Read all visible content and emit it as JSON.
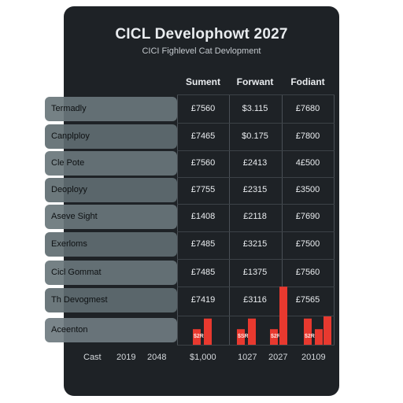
{
  "chart_data": {
    "type": "table",
    "title": "CICL Develophowt 2027",
    "subtitle": "CICI Fighlevel Cat Devlopment",
    "columns": [
      "Sument",
      "Forwant",
      "Fodiant"
    ],
    "rows": [
      {
        "label": "Termadly",
        "values": [
          "£7560",
          "$3.115",
          "£7680"
        ]
      },
      {
        "label": "Canplploy",
        "values": [
          "£7465",
          "$0.175",
          "£7800"
        ]
      },
      {
        "label": "Cle Pote",
        "values": [
          "£7560",
          "£2413",
          "4£500"
        ]
      },
      {
        "label": "Deoployy",
        "values": [
          "£7755",
          "£2315",
          "£3500"
        ]
      },
      {
        "label": "Aseve Sight",
        "values": [
          "£1408",
          "£2118",
          "£7690"
        ]
      },
      {
        "label": "Exerloms",
        "values": [
          "£7485",
          "£3215",
          "£7500"
        ]
      },
      {
        "label": "Cicl Gommat",
        "values": [
          "£7485",
          "£1375",
          "£7560"
        ]
      },
      {
        "label": "Th Devogmest",
        "values": [
          "£7419",
          "£3116",
          "£7565"
        ]
      },
      {
        "label": "Aceenton",
        "values": [
          "",
          "",
          ""
        ]
      }
    ],
    "bar_series": {
      "color": "#e8392f",
      "values": [
        22,
        37,
        22,
        37,
        22,
        82,
        37,
        22,
        40
      ],
      "labels": [
        "$2RB",
        "",
        "$SRR",
        "",
        "$2RB",
        "",
        "$2RB",
        "",
        ""
      ]
    },
    "x_axis_labels": [
      "Cast",
      "2019",
      "2048",
      "$1,000",
      "1027",
      "2027",
      "20109"
    ]
  },
  "colors": {
    "card_bg": "#1e2226",
    "row_band": "#69767b",
    "bar": "#e8392f"
  }
}
